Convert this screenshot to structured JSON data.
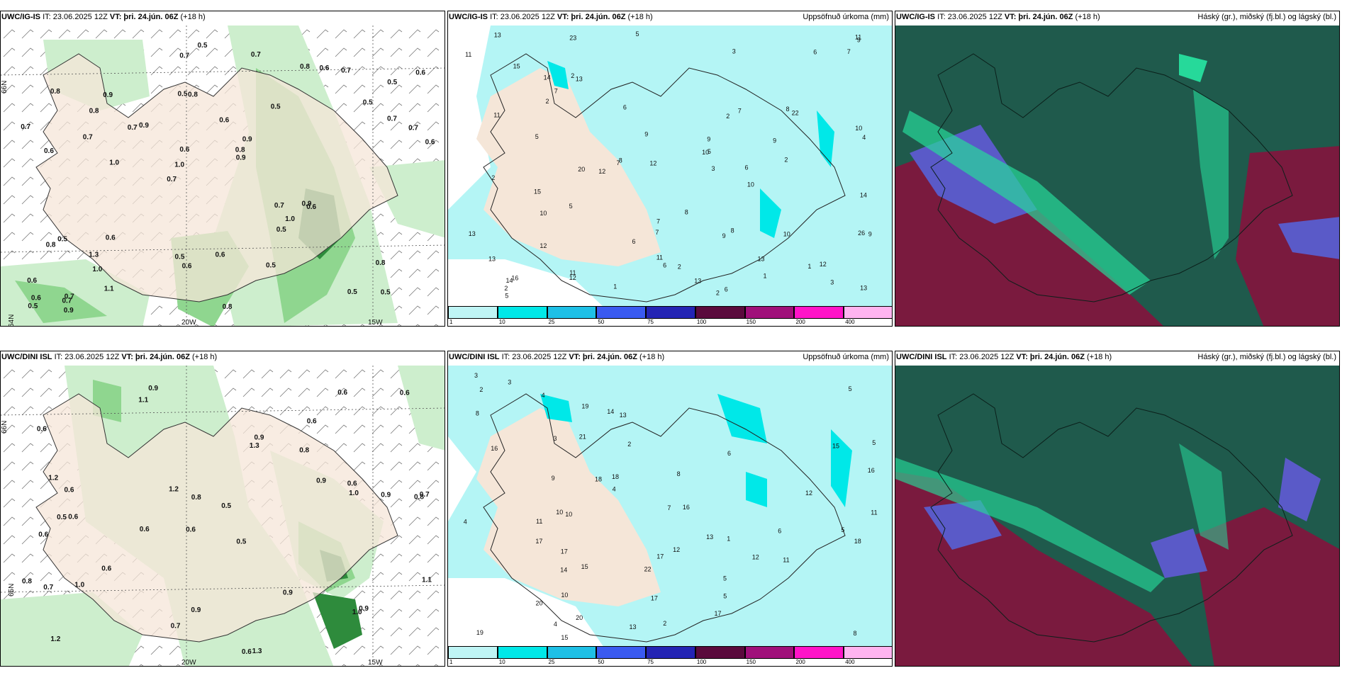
{
  "panels": {
    "p1": {
      "model": "UWC/IG-IS",
      "it": "IT: 23.06.2025 12Z",
      "vt": "VT: þri. 24.jún. 06Z",
      "lead": "(+18 h)",
      "right": ""
    },
    "p2": {
      "model": "UWC/IG-IS",
      "it": "IT: 23.06.2025 12Z",
      "vt": "VT: þri. 24.jún. 06Z",
      "lead": "(+18 h)",
      "right": "Uppsöfnuð úrkoma (mm)"
    },
    "p3": {
      "model": "UWC/IG-IS",
      "it": "IT: 23.06.2025 12Z",
      "vt": "VT: þri. 24.jún. 06Z",
      "lead": "(+18 h)",
      "right": "Háský (gr.), miðský (fj.bl.) og lágský (bl.)"
    },
    "p4": {
      "model": "UWC/DINI ISL",
      "it": "IT: 23.06.2025 12Z",
      "vt": "VT: þri. 24.jún. 06Z",
      "lead": "(+18 h)",
      "right": ""
    },
    "p5": {
      "model": "UWC/DINI ISL",
      "it": "IT: 23.06.2025 12Z",
      "vt": "VT: þri. 24.jún. 06Z",
      "lead": "(+18 h)",
      "right": "Uppsöfnuð úrkoma (mm)"
    },
    "p6": {
      "model": "UWC/DINI ISL",
      "it": "IT: 23.06.2025 12Z",
      "vt": "VT: þri. 24.jún. 06Z",
      "lead": "(+18 h)",
      "right": "Háský (gr.), miðský (fj.bl.) og lágský (bl.)"
    }
  },
  "axis_labels": {
    "lat66": "66N",
    "lat65": "65N",
    "lat64": "64N",
    "lon20": "20W",
    "lon15": "15W"
  },
  "colorbar": {
    "colors": [
      "#bff5f5",
      "#00e8e8",
      "#1ec0e6",
      "#3a5af0",
      "#2424b4",
      "#5a0a3c",
      "#a0107a",
      "#ff14c8",
      "#ffb4f0"
    ],
    "ticks": [
      "1",
      "10",
      "25",
      "50",
      "75",
      "100",
      "150",
      "200",
      "400"
    ]
  },
  "colors": {
    "land": "#f5e6d8",
    "precip_light": "#b4f5f5",
    "green_light": "#cdeecd",
    "green_mid": "#8fd68f",
    "green_dark": "#2e8b3c",
    "cloud_teal": "#1f5a4c",
    "cloud_red": "#7a1a3e",
    "cloud_blue": "#5a5ac8",
    "cloud_mint": "#26d99a"
  },
  "wind_values_p1": [
    "0.5",
    "0.6",
    "0.5",
    "0.7",
    "0.5",
    "0.7",
    "0.5",
    "0.6",
    "0.5",
    "0.9",
    "0.6",
    "1.0",
    "0.8",
    "0.9",
    "0.6",
    "0.8",
    "0.7",
    "0.6",
    "0.7",
    "0.7",
    "1.0",
    "0.5",
    "0.6",
    "0.9",
    "0.8",
    "0.6",
    "0.5",
    "0.8",
    "0.9",
    "0.8",
    "0.7",
    "0.7",
    "0.5",
    "1.1",
    "0.7",
    "0.8",
    "0.6",
    "0.6",
    "0.9",
    "0.8",
    "0.5",
    "0.6",
    "1.0",
    "0.5",
    "1.3",
    "0.9",
    "0.5",
    "0.6",
    "0.7",
    "0.5",
    "1.0",
    "0.7",
    "0.8",
    "0.6",
    "0.7",
    "0.7"
  ],
  "wind_values_p4": [
    "0.9",
    "0.6",
    "0.8",
    "0.6",
    "0.5",
    "0.6",
    "0.6",
    "0.8",
    "0.6",
    "1.3",
    "0.5",
    "1.2",
    "1.1",
    "0.6",
    "0.6",
    "1.3",
    "0.9",
    "0.6",
    "0.9",
    "0.6",
    "0.6",
    "0.5",
    "0.7",
    "0.9",
    "0.8",
    "1.2",
    "0.8",
    "1.0",
    "0.9",
    "0.7",
    "1.0",
    "0.9",
    "1.0",
    "1.2",
    "0.9",
    "1.1",
    "0.6",
    "0.7",
    "0.6"
  ],
  "precip_values_p2": [
    "1",
    "2",
    "11",
    "13",
    "23",
    "15",
    "20",
    "3",
    "5",
    "6",
    "6",
    "6",
    "8",
    "7",
    "3",
    "10",
    "11",
    "12",
    "12",
    "11",
    "9",
    "9",
    "9",
    "14",
    "22",
    "15",
    "13",
    "10",
    "13",
    "10",
    "12",
    "6",
    "7",
    "7",
    "12",
    "6",
    "26",
    "13",
    "7",
    "12",
    "5",
    "9",
    "9",
    "16",
    "13",
    "8",
    "14",
    "13",
    "14",
    "11",
    "11",
    "10",
    "13",
    "10",
    "5",
    "8",
    "7",
    "9",
    "2",
    "2",
    "1",
    "1",
    "2",
    "2",
    "2",
    "2",
    "3",
    "4",
    "5",
    "2",
    "6",
    "8",
    "7",
    "5"
  ],
  "precip_values_p5": [
    "2",
    "3",
    "4",
    "5",
    "5",
    "5",
    "13",
    "15",
    "19",
    "12",
    "14",
    "16",
    "15",
    "17",
    "17",
    "18",
    "22",
    "20",
    "21",
    "18",
    "16",
    "17",
    "20",
    "10",
    "11",
    "12",
    "17",
    "11",
    "13",
    "14",
    "13",
    "19",
    "15",
    "18",
    "7",
    "9",
    "4",
    "4",
    "5",
    "6",
    "3",
    "2",
    "1",
    "2",
    "3",
    "8",
    "10",
    "12",
    "17",
    "16",
    "11",
    "10",
    "4",
    "5",
    "6",
    "8",
    "8"
  ]
}
